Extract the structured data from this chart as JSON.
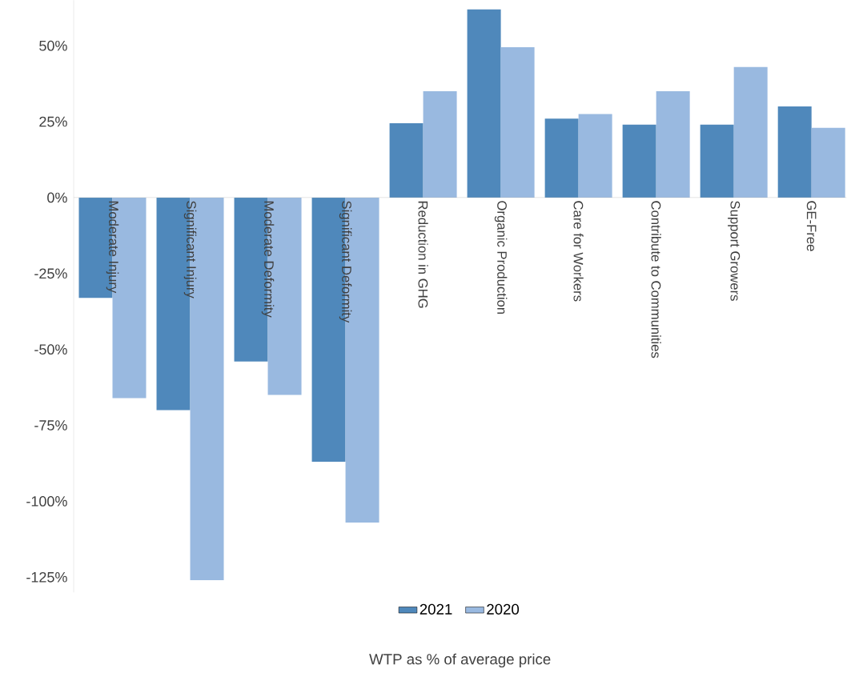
{
  "chart_data": {
    "type": "bar",
    "xlabel": "WTP as % of average price",
    "categories": [
      "Moderate Injury",
      "Significant Injury",
      "Moderate Deformity",
      "Significant  Deformity",
      "Reduction in GHG",
      "Organic Production",
      "Care for Workers",
      "Contribute to Communities",
      "Support Growers",
      "GE-Free"
    ],
    "series": [
      {
        "name": "2021",
        "color": "#4f88bb",
        "values": [
          -33,
          -70,
          -54,
          -87,
          24.5,
          62,
          26,
          24,
          24,
          30
        ]
      },
      {
        "name": "2020",
        "color": "#99b9e0",
        "values": [
          -66,
          -126,
          -65,
          -107,
          35,
          49.5,
          27.5,
          35,
          43,
          23
        ]
      }
    ],
    "yticks": [
      {
        "value": -125,
        "label": "-125%"
      },
      {
        "value": -100,
        "label": "-100%"
      },
      {
        "value": -75,
        "label": "-75%"
      },
      {
        "value": -50,
        "label": "-50%"
      },
      {
        "value": -25,
        "label": "-25%"
      },
      {
        "value": 0,
        "label": "0%"
      },
      {
        "value": 25,
        "label": "25%"
      },
      {
        "value": 50,
        "label": "50%"
      }
    ],
    "ylim": [
      -130,
      65
    ],
    "grid": false,
    "legend": "bottom"
  }
}
